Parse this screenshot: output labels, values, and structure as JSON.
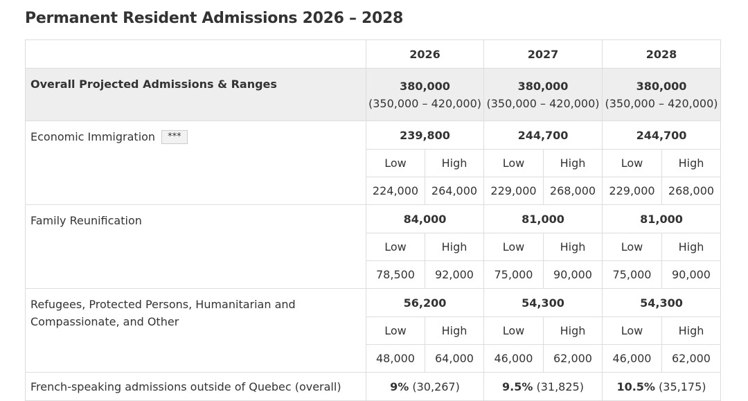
{
  "page_title": "Permanent Resident Admissions 2026 – 2028",
  "years": [
    "2026",
    "2027",
    "2028"
  ],
  "overall": {
    "label": "Overall Projected Admissions & Ranges",
    "values": [
      {
        "main": "380,000",
        "range": "(350,000 – 420,000)"
      },
      {
        "main": "380,000",
        "range": "(350,000 – 420,000)"
      },
      {
        "main": "380,000",
        "range": "(350,000 – 420,000)"
      }
    ]
  },
  "low_label": "Low",
  "high_label": "High",
  "categories": [
    {
      "label": "Economic Immigration",
      "footnote": "***",
      "totals": [
        "239,800",
        "244,700",
        "244,700"
      ],
      "ranges": [
        [
          "224,000",
          "264,000"
        ],
        [
          "229,000",
          "268,000"
        ],
        [
          "229,000",
          "268,000"
        ]
      ]
    },
    {
      "label": "Family Reunification",
      "totals": [
        "84,000",
        "81,000",
        "81,000"
      ],
      "ranges": [
        [
          "78,500",
          "92,000"
        ],
        [
          "75,000",
          "90,000"
        ],
        [
          "75,000",
          "90,000"
        ]
      ]
    },
    {
      "label": "Refugees, Protected Persons, Humanitarian and Compassionate, and Other",
      "totals": [
        "56,200",
        "54,300",
        "54,300"
      ],
      "ranges": [
        [
          "48,000",
          "64,000"
        ],
        [
          "46,000",
          "62,000"
        ],
        [
          "46,000",
          "62,000"
        ]
      ]
    }
  ],
  "french": {
    "label": "French-speaking admissions outside of Quebec (overall)",
    "values": [
      {
        "pct": "9%",
        "count": " (30,267)"
      },
      {
        "pct": "9.5%",
        "count": " (31,825)"
      },
      {
        "pct": "10.5%",
        "count": " (35,175)"
      }
    ]
  }
}
